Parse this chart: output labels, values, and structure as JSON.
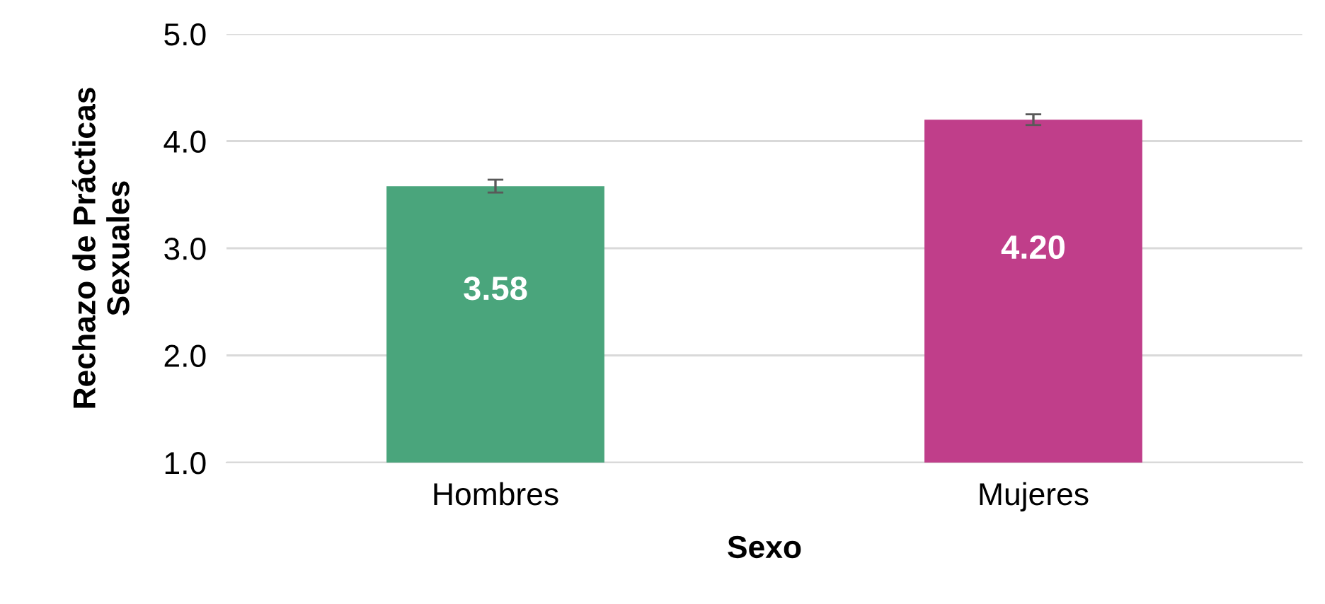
{
  "chart_data": {
    "type": "bar",
    "xlabel": "Sexo",
    "ylabel": "Rechazo de Prácticas\nSexuales",
    "categories": [
      "Hombres",
      "Mujeres"
    ],
    "values": [
      3.58,
      4.2
    ],
    "colors": [
      "#4aa57c",
      "#c03e8a"
    ],
    "errors": [
      0.06,
      0.05
    ],
    "value_labels": [
      "3.58",
      "4.20"
    ],
    "ylim": [
      1.0,
      5.0
    ],
    "yticks": [
      {
        "value": 1.0,
        "label": "1.0"
      },
      {
        "value": 2.0,
        "label": "2.0"
      },
      {
        "value": 3.0,
        "label": "3.0"
      },
      {
        "value": 4.0,
        "label": "4.0"
      },
      {
        "value": 5.0,
        "label": "5.0"
      }
    ],
    "grid": "y",
    "legend": false
  }
}
